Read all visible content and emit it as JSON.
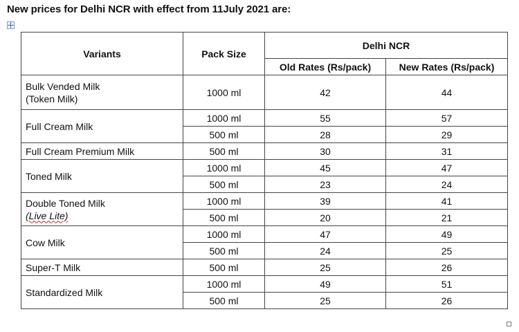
{
  "heading": "New prices for Delhi NCR with effect from 11July 2021 are:",
  "table": {
    "headers": {
      "variants": "Variants",
      "pack_size": "Pack Size",
      "region": "Delhi NCR",
      "old_rates": "Old Rates (Rs/pack)",
      "new_rates": "New Rates (Rs/pack)"
    },
    "groups": [
      {
        "variant_lines": [
          "Bulk Vended Milk",
          "(Token Milk)"
        ],
        "rows": [
          {
            "pack": "1000 ml",
            "old": "42",
            "new": "44"
          }
        ]
      },
      {
        "variant_lines": [
          "Full Cream Milk"
        ],
        "rows": [
          {
            "pack": "1000 ml",
            "old": "55",
            "new": "57"
          },
          {
            "pack": "500 ml",
            "old": "28",
            "new": "29"
          }
        ]
      },
      {
        "variant_lines": [
          "Full Cream Premium Milk"
        ],
        "rows": [
          {
            "pack": "500 ml",
            "old": "30",
            "new": "31"
          }
        ]
      },
      {
        "variant_lines": [
          "Toned Milk"
        ],
        "rows": [
          {
            "pack": "1000 ml",
            "old": "45",
            "new": "47"
          },
          {
            "pack": "500 ml",
            "old": "23",
            "new": "24"
          }
        ]
      },
      {
        "variant_lines": [
          "Double Toned Milk",
          "(Live Lite)"
        ],
        "rows": [
          {
            "pack": "1000 ml",
            "old": "39",
            "new": "41"
          },
          {
            "pack": "500 ml",
            "old": "20",
            "new": "21"
          }
        ]
      },
      {
        "variant_lines": [
          "Cow Milk"
        ],
        "rows": [
          {
            "pack": "1000 ml",
            "old": "47",
            "new": "49"
          },
          {
            "pack": "500 ml",
            "old": "24",
            "new": "25"
          }
        ]
      },
      {
        "variant_lines": [
          "Super-T Milk"
        ],
        "rows": [
          {
            "pack": "500 ml",
            "old": "25",
            "new": "26"
          }
        ]
      },
      {
        "variant_lines": [
          "Standardized Milk"
        ],
        "rows": [
          {
            "pack": "1000 ml",
            "old": "49",
            "new": "51"
          },
          {
            "pack": "500 ml",
            "old": "25",
            "new": "26"
          }
        ]
      }
    ]
  },
  "icons": {
    "move_handle": "table-move-icon",
    "resize_handle": "table-resize-icon"
  },
  "colors": {
    "spellcheck_underline": "#d22222",
    "border": "#444444",
    "handle_border": "#7a9cc8"
  }
}
